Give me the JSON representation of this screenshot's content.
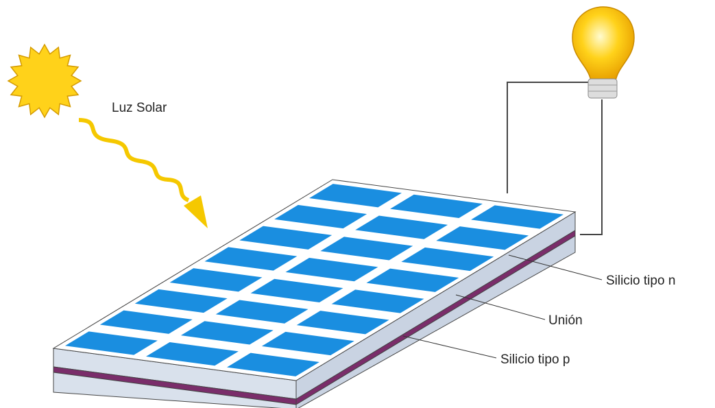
{
  "labels": {
    "light": "Luz Solar",
    "n_type": "Silicio tipo n",
    "junction": "Unión",
    "p_type": "Silicio tipo p"
  }
}
